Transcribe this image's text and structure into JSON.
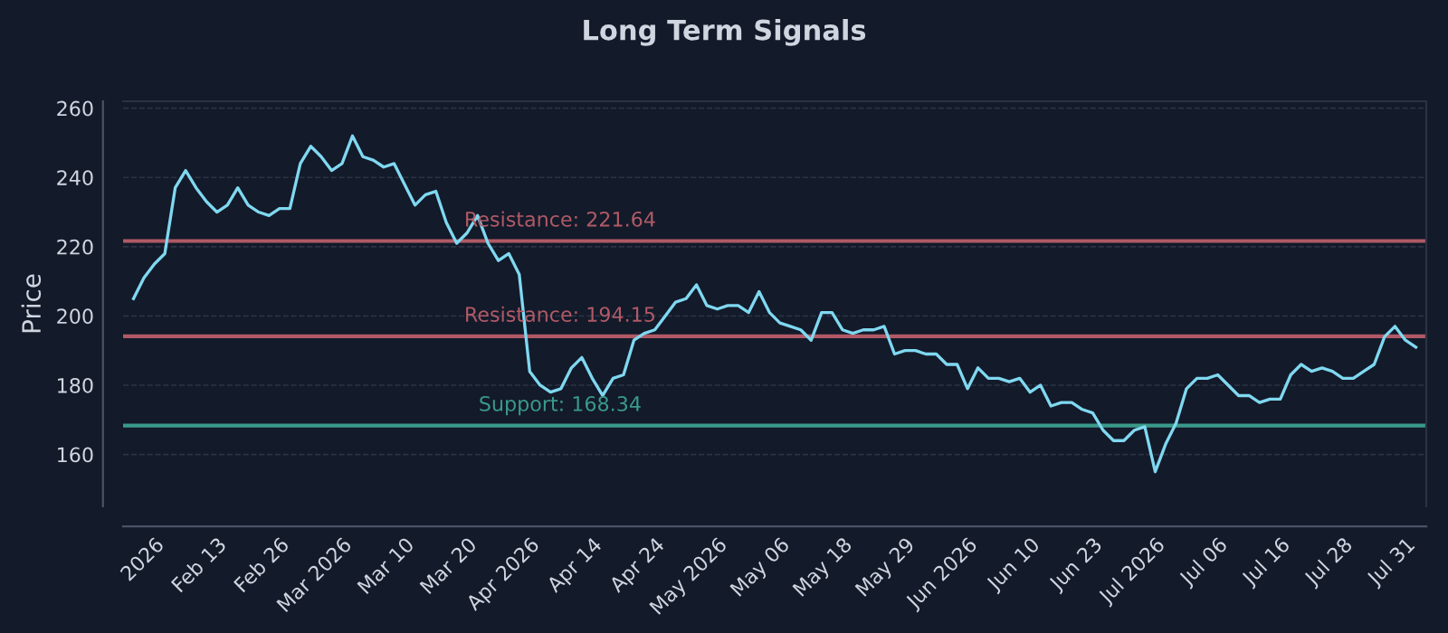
{
  "chart_data": {
    "type": "line",
    "title": "Long Term Signals",
    "ylabel": "Price",
    "categories": [
      null,
      null,
      "2026",
      null,
      null,
      null,
      null,
      null,
      "Feb 13",
      null,
      null,
      null,
      null,
      null,
      "Feb 26",
      null,
      null,
      null,
      null,
      null,
      "Mar 2026",
      null,
      null,
      null,
      null,
      null,
      "Mar 10",
      null,
      null,
      null,
      null,
      null,
      "Mar 20",
      null,
      null,
      null,
      null,
      null,
      "Apr 2026",
      null,
      null,
      null,
      null,
      null,
      "Apr 14",
      null,
      null,
      null,
      null,
      null,
      "Apr 24",
      null,
      null,
      null,
      null,
      null,
      "May 2026",
      null,
      null,
      null,
      null,
      null,
      "May 06",
      null,
      null,
      null,
      null,
      null,
      "May 18",
      null,
      null,
      null,
      null,
      null,
      "May 29",
      null,
      null,
      null,
      null,
      null,
      "Jun 2026",
      null,
      null,
      null,
      null,
      null,
      "Jun 10",
      null,
      null,
      null,
      null,
      null,
      "Jun 23",
      null,
      null,
      null,
      null,
      null,
      "Jul 2026",
      null,
      null,
      null,
      null,
      null,
      "Jul 06",
      null,
      null,
      null,
      null,
      null,
      "Jul 16",
      null,
      null,
      null,
      null,
      null,
      "Jul 28",
      null,
      null,
      null,
      null,
      null,
      "Jul 31",
      null
    ],
    "series": [
      {
        "color": "#7fd8f0",
        "values": [
          205,
          211,
          215,
          218,
          237,
          242,
          237,
          233,
          230,
          232,
          237,
          232,
          230,
          229,
          231,
          231,
          244,
          249,
          246,
          242,
          244,
          252,
          246,
          245,
          243,
          244,
          238,
          232,
          235,
          236,
          227,
          221,
          224,
          229,
          221,
          216,
          218,
          212,
          184,
          180,
          178,
          179,
          185,
          188,
          182,
          177,
          182,
          183,
          193,
          195,
          196,
          200,
          204,
          205,
          209,
          203,
          202,
          203,
          203,
          201,
          207,
          201,
          198,
          197,
          196,
          193,
          201,
          201,
          196,
          195,
          196,
          196,
          197,
          189,
          190,
          190,
          189,
          189,
          186,
          186,
          179,
          185,
          182,
          182,
          181,
          182,
          178,
          180,
          174,
          175,
          175,
          173,
          172,
          167,
          164,
          164,
          167,
          168,
          155,
          163,
          169,
          179,
          182,
          182,
          183,
          180,
          177,
          177,
          175,
          176,
          176,
          183,
          186,
          184,
          185,
          184,
          182,
          182,
          184,
          186,
          194,
          197,
          193,
          191
        ]
      }
    ],
    "ylim": [
      145,
      262
    ],
    "yticks": [
      160,
      180,
      200,
      220,
      240,
      260
    ],
    "grid": "y",
    "marker": "none",
    "line_style": "solid",
    "legend": false,
    "ref_lines": [
      {
        "axis": "y",
        "value": 221.64,
        "label": "Resistance: 221.64",
        "color": "#b05a66"
      },
      {
        "axis": "y",
        "value": 194.15,
        "label": "Resistance: 194.15",
        "color": "#b05a66"
      },
      {
        "axis": "y",
        "value": 168.34,
        "label": "Support: 168.34",
        "color": "#3a9a8a"
      }
    ]
  }
}
